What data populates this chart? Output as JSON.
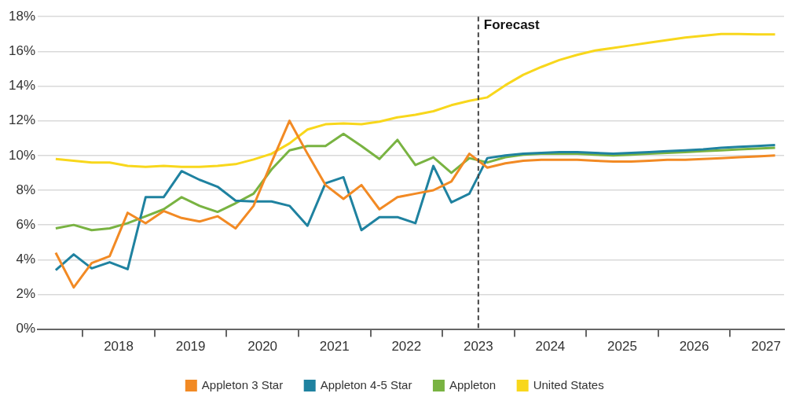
{
  "chart_data": {
    "type": "line",
    "x": [
      2017.625,
      2017.875,
      2018.125,
      2018.375,
      2018.625,
      2018.875,
      2019.125,
      2019.375,
      2019.625,
      2019.875,
      2020.125,
      2020.375,
      2020.625,
      2020.875,
      2021.125,
      2021.375,
      2021.625,
      2021.875,
      2022.125,
      2022.375,
      2022.625,
      2022.875,
      2023.125,
      2023.375,
      2023.625,
      2023.875,
      2024.125,
      2024.375,
      2024.625,
      2024.875,
      2025.125,
      2025.375,
      2025.625,
      2025.875,
      2026.125,
      2026.375,
      2026.625,
      2026.875,
      2027.125,
      2027.375,
      2027.625
    ],
    "series": [
      {
        "name": "Appleton 3 Star",
        "color": "#f28a24",
        "values": [
          4.4,
          2.4,
          3.8,
          4.2,
          6.7,
          6.1,
          6.8,
          6.4,
          6.2,
          6.5,
          5.8,
          7.1,
          9.6,
          12.0,
          10.1,
          8.3,
          7.5,
          8.3,
          6.9,
          7.6,
          7.8,
          8.0,
          8.5,
          10.1,
          9.3,
          9.55,
          9.7,
          9.75,
          9.75,
          9.75,
          9.7,
          9.65,
          9.65,
          9.7,
          9.75,
          9.75,
          9.8,
          9.85,
          9.9,
          9.95,
          10.0
        ]
      },
      {
        "name": "Appleton 4-5 Star",
        "color": "#1f82a0",
        "values": [
          3.4,
          4.3,
          3.5,
          3.85,
          3.45,
          7.6,
          7.6,
          9.1,
          8.6,
          8.2,
          7.4,
          7.35,
          7.35,
          7.1,
          5.95,
          8.4,
          8.75,
          5.7,
          6.45,
          6.45,
          6.1,
          9.4,
          7.3,
          7.8,
          9.85,
          10.0,
          10.1,
          10.15,
          10.2,
          10.2,
          10.15,
          10.1,
          10.15,
          10.2,
          10.25,
          10.3,
          10.35,
          10.45,
          10.5,
          10.55,
          10.6
        ]
      },
      {
        "name": "Appleton",
        "color": "#79b342",
        "values": [
          5.8,
          6.0,
          5.7,
          5.8,
          6.1,
          6.5,
          6.9,
          7.6,
          7.1,
          6.75,
          7.25,
          7.8,
          9.2,
          10.3,
          10.55,
          10.55,
          11.25,
          10.55,
          9.8,
          10.9,
          9.45,
          9.9,
          9.0,
          9.85,
          9.6,
          9.9,
          10.05,
          10.1,
          10.1,
          10.1,
          10.05,
          10.0,
          10.05,
          10.1,
          10.15,
          10.2,
          10.25,
          10.3,
          10.35,
          10.4,
          10.45
        ]
      },
      {
        "name": "United States",
        "color": "#f8d71c",
        "values": [
          9.8,
          9.7,
          9.6,
          9.6,
          9.4,
          9.35,
          9.4,
          9.35,
          9.35,
          9.4,
          9.5,
          9.77,
          10.1,
          10.7,
          11.5,
          11.8,
          11.85,
          11.8,
          11.95,
          12.2,
          12.35,
          12.55,
          12.9,
          13.15,
          13.35,
          14.05,
          14.65,
          15.1,
          15.5,
          15.8,
          16.05,
          16.2,
          16.35,
          16.5,
          16.65,
          16.8,
          16.9,
          17.0,
          17.0,
          16.98,
          16.98
        ]
      }
    ],
    "xlim": [
      2017.375,
      2027.75
    ],
    "xticks": [
      {
        "value": 2018,
        "label": null
      },
      {
        "value": 2018.5,
        "label": "2018"
      },
      {
        "value": 2019,
        "label": null
      },
      {
        "value": 2019.5,
        "label": "2019"
      },
      {
        "value": 2020,
        "label": null
      },
      {
        "value": 2020.5,
        "label": "2020"
      },
      {
        "value": 2021,
        "label": null
      },
      {
        "value": 2021.5,
        "label": "2021"
      },
      {
        "value": 2022,
        "label": null
      },
      {
        "value": 2022.5,
        "label": "2022"
      },
      {
        "value": 2023,
        "label": null
      },
      {
        "value": 2023.5,
        "label": "2023"
      },
      {
        "value": 2024,
        "label": null
      },
      {
        "value": 2024.5,
        "label": "2024"
      },
      {
        "value": 2025,
        "label": null
      },
      {
        "value": 2025.5,
        "label": "2025"
      },
      {
        "value": 2026,
        "label": null
      },
      {
        "value": 2026.5,
        "label": "2026"
      },
      {
        "value": 2027,
        "label": null
      },
      {
        "value": 2027.5,
        "label": "2027"
      }
    ],
    "ylim": [
      0,
      18
    ],
    "yticks": [
      {
        "value": 0,
        "label": "0%"
      },
      {
        "value": 2,
        "label": "2%"
      },
      {
        "value": 4,
        "label": "4%"
      },
      {
        "value": 6,
        "label": "6%"
      },
      {
        "value": 8,
        "label": "8%"
      },
      {
        "value": 10,
        "label": "10%"
      },
      {
        "value": 12,
        "label": "12%"
      },
      {
        "value": 14,
        "label": "14%"
      },
      {
        "value": 16,
        "label": "16%"
      },
      {
        "value": 18,
        "label": "18%"
      }
    ],
    "ref_lines": [
      {
        "axis": "x",
        "value": 2023.5,
        "label": "Forecast",
        "color": "#444444",
        "line_style": "dashed"
      }
    ],
    "grid": "y",
    "legend": "bottom",
    "marker": "none",
    "line_style": "solid"
  }
}
